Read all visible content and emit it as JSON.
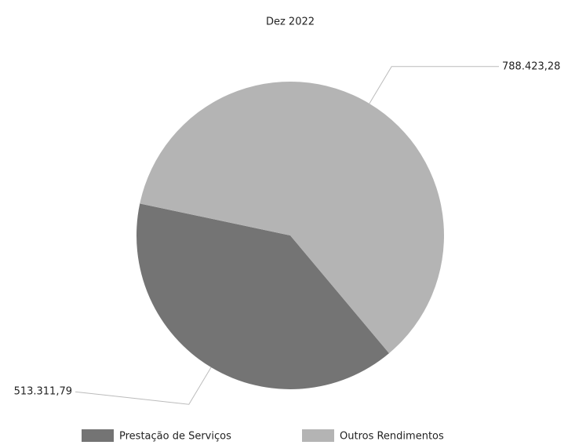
{
  "chart_data": {
    "type": "pie",
    "title": "Dez 2022",
    "categories": [
      "Prestação de Serviços",
      "Outros Rendimentos"
    ],
    "values": [
      513311.79,
      788423.28
    ],
    "value_labels": [
      "513.311,79",
      "788.423,28"
    ],
    "colors": [
      "#747474",
      "#b4b4b4"
    ],
    "legend": "bottom"
  }
}
